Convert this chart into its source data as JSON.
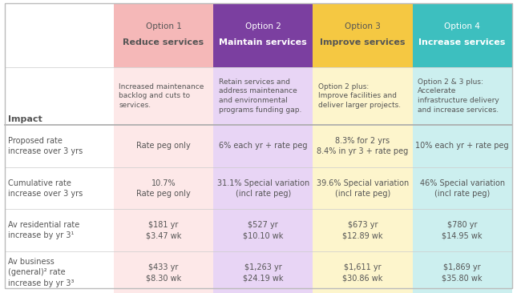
{
  "title": "",
  "col_headers": [
    "Option 1\nReduce services",
    "Option 2\nMaintain services",
    "Option 3\nImprove services",
    "Option 4\nIncrease services"
  ],
  "col_header_colors": [
    "#f5b8b8",
    "#7b3fa0",
    "#f5c842",
    "#3dbfbf"
  ],
  "col_header_text_colors": [
    "#555555",
    "#ffffff",
    "#555555",
    "#ffffff"
  ],
  "col_bold_labels": [
    "Reduce services",
    "Maintain services",
    "Improve services",
    "Increase services"
  ],
  "col_plain_labels": [
    "Option 1",
    "Option 2",
    "Option 3",
    "Option 4"
  ],
  "descriptions": [
    "Increased maintenance\nbacklog and cuts to\nservices.",
    "Retain services and\naddress maintenance\nand environmental\nprograms funding gap.",
    "Option 2 plus:\nImprove facilities and\ndeliver larger projects.",
    "Option 2 & 3 plus:\nAccelerate\ninfrastructure delivery\nand increase services."
  ],
  "desc_bg_colors": [
    "#fde8e8",
    "#e8d5f5",
    "#fdf5cc",
    "#ccefef"
  ],
  "row_label": "Impact",
  "rows": [
    {
      "label": "Proposed rate\nincrease over 3 yrs",
      "values": [
        "Rate peg only",
        "6% each yr + rate peg",
        "8.3% for 2 yrs\n8.4% in yr 3 + rate peg",
        "10% each yr + rate peg"
      ]
    },
    {
      "label": "Cumulative rate\nincrease over 3 yrs",
      "values": [
        "10.7%\nRate peg only",
        "31.1% Special variation\n(incl rate peg)",
        "39.6% Special variation\n(incl rate peg)",
        "46% Special variation\n(incl rate peg)"
      ]
    },
    {
      "label": "Av residential rate\nincrease by yr 3¹",
      "values": [
        "$181 yr\n$3.47 wk",
        "$527 yr\n$10.10 wk",
        "$673 yr\n$12.89 wk",
        "$780 yr\n$14.95 wk"
      ]
    },
    {
      "label": "Av business\n(general)² rate\nincrease by yr 3³",
      "values": [
        "$433 yr\n$8.30 wk",
        "$1,263 yr\n$24.19 wk",
        "$1,611 yr\n$30.86 wk",
        "$1,869 yr\n$35.80 wk"
      ]
    }
  ],
  "row_bg_colors": [
    "#ffffff",
    "#fafafa",
    "#ffffff",
    "#fafafa"
  ],
  "cell_bg_colors": [
    [
      "#fde8e8",
      "#e8d5f5",
      "#fdf5cc",
      "#ccefef"
    ],
    [
      "#fde8e8",
      "#e8d5f5",
      "#fdf5cc",
      "#ccefef"
    ],
    [
      "#fde8e8",
      "#e8d5f5",
      "#fdf5cc",
      "#ccefef"
    ],
    [
      "#fde8e8",
      "#e8d5f5",
      "#fdf5cc",
      "#ccefef"
    ]
  ],
  "bg_color": "#ffffff",
  "text_color": "#555555",
  "divider_color": "#cccccc"
}
